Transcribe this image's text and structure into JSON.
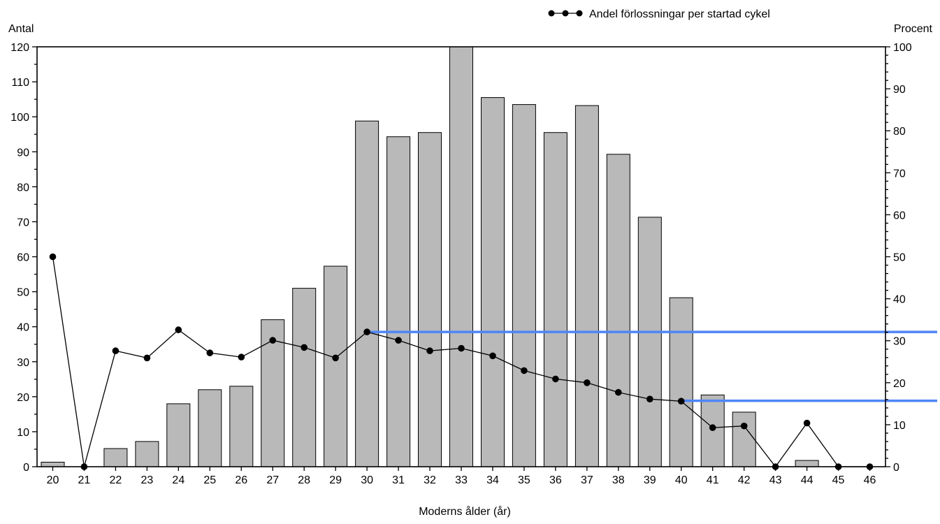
{
  "chart_data": {
    "type": "bar",
    "categories": [
      "20",
      "21",
      "22",
      "23",
      "24",
      "25",
      "26",
      "27",
      "28",
      "29",
      "30",
      "31",
      "32",
      "33",
      "34",
      "35",
      "36",
      "37",
      "38",
      "39",
      "40",
      "41",
      "42",
      "43",
      "44",
      "45",
      "46"
    ],
    "bar_values": [
      1.3,
      0,
      5.2,
      7.2,
      18,
      22,
      23,
      42,
      51,
      57.3,
      98.8,
      94.3,
      95.5,
      120,
      105.5,
      103.5,
      95.5,
      103.2,
      89.3,
      71.3,
      48.3,
      20.5,
      15.6,
      0,
      1.8,
      0,
      0
    ],
    "series": [
      {
        "name": "Andel förlossningar per startad cykel",
        "axis": "right",
        "values": [
          50,
          0,
          27.6,
          25.9,
          32.6,
          27.1,
          26.1,
          30.1,
          28.4,
          25.9,
          32.1,
          30.1,
          27.6,
          28.2,
          26.4,
          22.9,
          20.9,
          20.0,
          17.7,
          16.1,
          15.6,
          9.3,
          9.7,
          0,
          10.4,
          0,
          0
        ]
      }
    ],
    "reference_lines": [
      {
        "axis": "right",
        "value": 32.1,
        "from_category": "30",
        "color": "#4f86f7"
      },
      {
        "axis": "right",
        "value": 15.7,
        "from_category": "40",
        "color": "#4f86f7"
      }
    ],
    "xlabel": "Moderns ålder (år)",
    "ylabel_left": "Antal",
    "ylabel_right": "Procent",
    "ylim_left": [
      0,
      120
    ],
    "ylim_right": [
      0,
      100
    ],
    "yticks_left": [
      0,
      10,
      20,
      30,
      40,
      50,
      60,
      70,
      80,
      90,
      100,
      110,
      120
    ],
    "yticks_right": [
      0,
      10,
      20,
      30,
      40,
      50,
      60,
      70,
      80,
      90,
      100
    ],
    "grid": false,
    "legend_placement": "top",
    "colors": {
      "bar_fill": "#b9b9b9",
      "bar_stroke": "#000000",
      "line": "#000000",
      "reference": "#4f86f7"
    }
  }
}
